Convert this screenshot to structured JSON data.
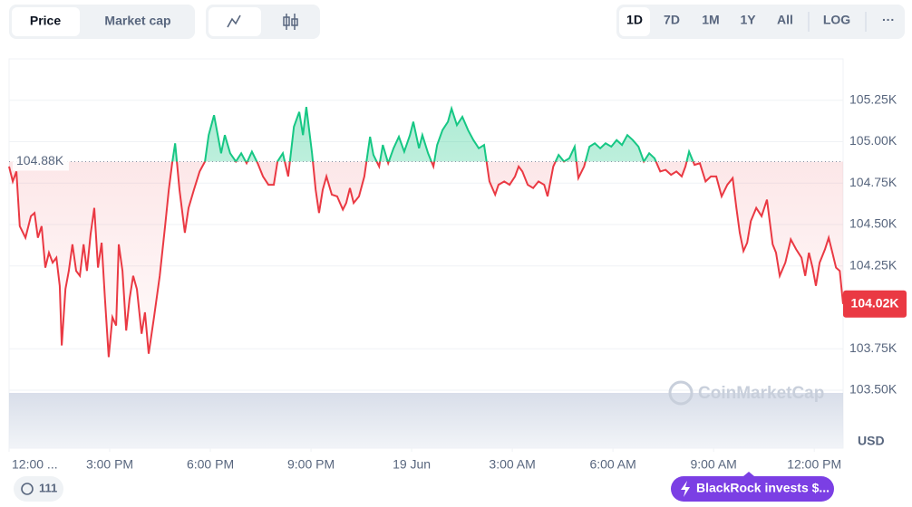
{
  "ui": {
    "tabs": [
      "Price",
      "Market cap"
    ],
    "ranges": [
      "1D",
      "7D",
      "1M",
      "1Y",
      "All"
    ],
    "log": "LOG",
    "more": "···",
    "badge": "111",
    "news": "BlackRock invests $...",
    "watermark": "CoinMarketCap"
  },
  "chart_data": {
    "type": "line",
    "x": [
      0.0,
      0.11,
      0.22,
      0.32,
      0.49,
      0.65,
      0.76,
      0.86,
      0.97,
      1.08,
      1.19,
      1.3,
      1.41,
      1.51,
      1.57,
      1.68,
      1.78,
      1.89,
      2.0,
      2.11,
      2.22,
      2.32,
      2.43,
      2.54,
      2.65,
      2.76,
      2.86,
      2.97,
      3.08,
      3.19,
      3.27,
      3.38,
      3.49,
      3.59,
      3.7,
      3.81,
      3.95,
      4.05,
      4.16,
      4.32,
      4.49,
      4.65,
      4.76,
      4.86,
      4.95,
      5.08,
      5.24,
      5.35,
      5.51,
      5.68,
      5.84,
      5.95,
      6.11,
      6.22,
      6.32,
      6.43,
      6.59,
      6.76,
      6.92,
      7.08,
      7.24,
      7.41,
      7.57,
      7.73,
      7.89,
      8.0,
      8.16,
      8.32,
      8.49,
      8.65,
      8.76,
      8.86,
      9.03,
      9.14,
      9.24,
      9.35,
      9.46,
      9.62,
      9.78,
      9.95,
      10.05,
      10.16,
      10.27,
      10.43,
      10.59,
      10.76,
      10.86,
      11.03,
      11.14,
      11.3,
      11.46,
      11.62,
      11.78,
      11.95,
      12.05,
      12.22,
      12.32,
      12.49,
      12.65,
      12.76,
      12.92,
      13.08,
      13.19,
      13.35,
      13.51,
      13.68,
      13.84,
      14.0,
      14.16,
      14.32,
      14.49,
      14.59,
      14.76,
      14.92,
      15.08,
      15.19,
      15.3,
      15.46,
      15.62,
      15.78,
      15.95,
      16.05,
      16.22,
      16.38,
      16.54,
      16.7,
      16.86,
      16.97,
      17.14,
      17.3,
      17.46,
      17.62,
      17.78,
      17.95,
      18.11,
      18.27,
      18.43,
      18.59,
      18.76,
      18.92,
      19.08,
      19.24,
      19.41,
      19.57,
      19.73,
      19.89,
      20.05,
      20.16,
      20.27,
      20.43,
      20.59,
      20.76,
      20.92,
      21.08,
      21.24,
      21.41,
      21.57,
      21.68,
      21.78,
      21.89,
      22.0,
      22.11,
      22.27,
      22.43,
      22.59,
      22.76,
      22.86,
      22.97,
      23.14,
      23.3,
      23.46,
      23.62,
      23.73,
      23.84,
      23.95,
      24.05,
      24.16,
      24.32,
      24.43,
      24.54,
      24.65,
      24.76,
      24.86
    ],
    "values": [
      104850,
      104760,
      104820,
      104490,
      104420,
      104550,
      104570,
      104420,
      104490,
      104240,
      104330,
      104270,
      104300,
      104130,
      103770,
      104110,
      104220,
      104380,
      104220,
      104190,
      104380,
      104220,
      104440,
      104600,
      104240,
      104390,
      104050,
      103700,
      103940,
      103890,
      104380,
      104220,
      103860,
      104050,
      104190,
      104110,
      103840,
      103970,
      103720,
      103940,
      104190,
      104490,
      104710,
      104870,
      104990,
      104710,
      104450,
      104600,
      104710,
      104820,
      104880,
      105040,
      105160,
      105040,
      104930,
      105040,
      104930,
      104880,
      104930,
      104870,
      104940,
      104870,
      104790,
      104740,
      104740,
      104880,
      104930,
      104790,
      105090,
      105180,
      105040,
      105210,
      104930,
      104710,
      104570,
      104710,
      104790,
      104680,
      104670,
      104590,
      104630,
      104720,
      104630,
      104670,
      104790,
      105030,
      104920,
      104850,
      104980,
      104870,
      104960,
      105030,
      104940,
      105040,
      105120,
      104960,
      105040,
      104930,
      104850,
      104980,
      105070,
      105120,
      105200,
      105100,
      105150,
      105070,
      105010,
      104960,
      104980,
      104760,
      104680,
      104740,
      104760,
      104740,
      104790,
      104850,
      104820,
      104740,
      104720,
      104760,
      104740,
      104670,
      104850,
      104920,
      104880,
      104900,
      104970,
      104780,
      104850,
      104970,
      104990,
      104960,
      104990,
      104970,
      105010,
      104980,
      105040,
      105010,
      104970,
      104880,
      104930,
      104900,
      104820,
      104830,
      104800,
      104820,
      104790,
      104850,
      104940,
      104860,
      104870,
      104760,
      104790,
      104790,
      104670,
      104740,
      104780,
      104600,
      104450,
      104340,
      104390,
      104520,
      104600,
      104550,
      104650,
      104380,
      104330,
      104190,
      104270,
      104410,
      104350,
      104300,
      104190,
      104330,
      104240,
      104130,
      104270,
      104350,
      104420,
      104330,
      104240,
      104220,
      104020
    ],
    "up_color": "#16c784",
    "down_color": "#ea3943",
    "baseline": {
      "value": 104880,
      "label": "104.88K"
    },
    "current_label": "104.02K",
    "y_unit": "USD",
    "xlim": [
      0,
      24.86
    ],
    "xticks": [
      {
        "value": 0,
        "label": "12:00 ..."
      },
      {
        "value": 3,
        "label": "3:00 PM"
      },
      {
        "value": 6,
        "label": "6:00 PM"
      },
      {
        "value": 9,
        "label": "9:00 PM"
      },
      {
        "value": 12,
        "label": "19 Jun"
      },
      {
        "value": 15,
        "label": "3:00 AM"
      },
      {
        "value": 18,
        "label": "6:00 AM"
      },
      {
        "value": 21,
        "label": "9:00 AM"
      },
      {
        "value": 24,
        "label": "12:00 PM"
      }
    ],
    "ylim": [
      103150,
      105500
    ],
    "yticks": [
      {
        "value": 103500,
        "label": "103.50K"
      },
      {
        "value": 103750,
        "label": "103.75K"
      },
      {
        "value": 104250,
        "label": "104.25K"
      },
      {
        "value": 104500,
        "label": "104.50K"
      },
      {
        "value": 104750,
        "label": "104.75K"
      },
      {
        "value": 105000,
        "label": "105.00K"
      },
      {
        "value": 105250,
        "label": "105.25K"
      }
    ],
    "grid": true
  }
}
